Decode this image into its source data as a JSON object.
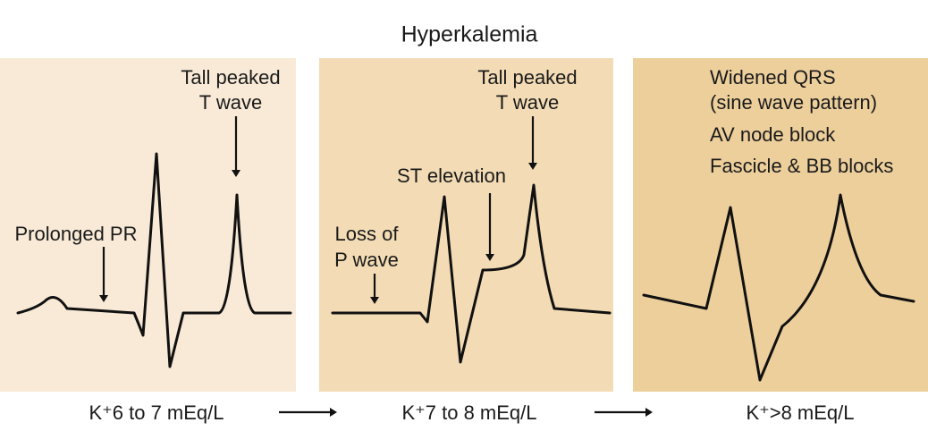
{
  "title": "Hyperkalemia",
  "panels": [
    {
      "annotations": [
        {
          "lines": [
            "Prolonged PR"
          ]
        },
        {
          "lines": [
            "Tall peaked",
            "T wave"
          ]
        }
      ],
      "label": "K⁺6 to 7 mEq/L"
    },
    {
      "annotations": [
        {
          "lines": [
            "Loss of",
            "P wave"
          ]
        },
        {
          "lines": [
            "ST elevation"
          ]
        },
        {
          "lines": [
            "Tall peaked",
            "T wave"
          ]
        }
      ],
      "label": "K⁺7 to 8 mEq/L"
    },
    {
      "annotations": [
        {
          "lines": [
            "Widened QRS",
            "(sine wave pattern)"
          ]
        },
        {
          "lines": [
            "AV node block"
          ]
        },
        {
          "lines": [
            "Fascicle & BB blocks"
          ]
        }
      ],
      "label": "K⁺>8  mEq/L"
    }
  ]
}
